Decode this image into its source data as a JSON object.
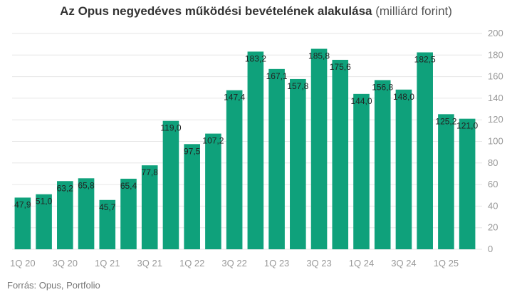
{
  "title": {
    "bold": "Az Opus negyedéves működési bevételének alakulása",
    "light": "(milliárd forint)"
  },
  "source": "Forrás: Opus, Portfolio",
  "colors": {
    "bar": "#0fa17b"
  },
  "chart_data": {
    "type": "bar",
    "title": "Az Opus negyedéves működési bevételének alakulása (milliárd forint)",
    "xlabel": "",
    "ylabel": "",
    "ylim": [
      0,
      200
    ],
    "yticks": [
      0,
      20,
      40,
      60,
      80,
      100,
      120,
      140,
      160,
      180,
      200
    ],
    "y_axis_side": "right",
    "grid": true,
    "legend": "none",
    "categories": [
      "1Q 20",
      "2Q 20",
      "3Q 20",
      "4Q 20",
      "1Q 21",
      "2Q 21",
      "3Q 21",
      "4Q 21",
      "1Q 22",
      "2Q 22",
      "3Q 22",
      "4Q 22",
      "1Q 23",
      "2Q 23",
      "3Q 23",
      "4Q 23",
      "1Q 24",
      "2Q 24",
      "3Q 24",
      "4Q 24",
      "1Q 25",
      "2Q 25"
    ],
    "x_tick_labels": [
      "1Q 20",
      "3Q 20",
      "1Q 21",
      "3Q 21",
      "1Q 22",
      "3Q 22",
      "1Q 23",
      "3Q 23",
      "1Q 24",
      "3Q 24",
      "1Q 25"
    ],
    "values": [
      47.9,
      51.0,
      63.2,
      65.8,
      45.7,
      65.4,
      77.8,
      119.0,
      97.5,
      107.2,
      147.4,
      183.2,
      167.1,
      157.8,
      185.8,
      175.6,
      144.0,
      156.8,
      148.0,
      182.5,
      125.2,
      121.0
    ],
    "data_labels": [
      "47,9",
      "51,0",
      "63,2",
      "65,8",
      "45,7",
      "65,4",
      "77,8",
      "119,0",
      "97,5",
      "107,2",
      "147,4",
      "183,2",
      "167,1",
      "157,8",
      "185,8",
      "175,6",
      "144,0",
      "156,8",
      "148,0",
      "182,5",
      "125,2",
      "121,0"
    ]
  }
}
